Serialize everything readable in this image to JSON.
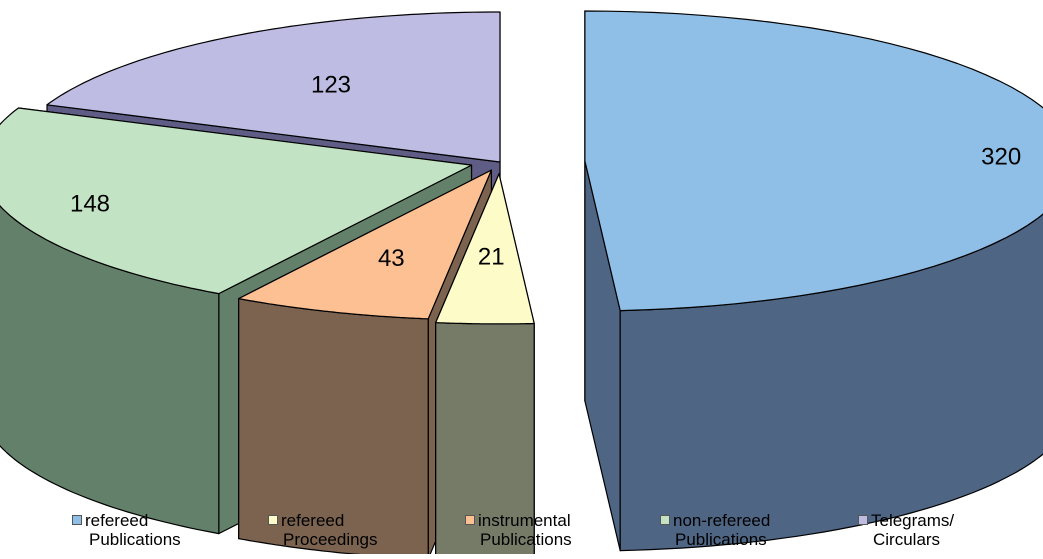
{
  "chart_data": {
    "type": "pie",
    "style": "3d-exploded",
    "title": "",
    "slices": [
      {
        "label": "refereed Publications",
        "value": 320,
        "color_top": "#8FBFE6",
        "color_side": "#4E6584"
      },
      {
        "label": "refereed Proceedings",
        "value": 21,
        "color_top": "#FDFBC8",
        "color_side": "#767B68"
      },
      {
        "label": "instrumental Publications",
        "value": 43,
        "color_top": "#FCC093",
        "color_side": "#7B6350"
      },
      {
        "label": "non-refereed Publications",
        "value": 148,
        "color_top": "#C3E3C5",
        "color_side": "#62806A"
      },
      {
        "label": "Telegrams/ Circulars",
        "value": 123,
        "color_top": "#BEBCE2",
        "color_side": "#5F5D85"
      }
    ],
    "data_labels": [
      "320",
      "21",
      "43",
      "148",
      "123"
    ],
    "legend": {
      "placement": "bottom",
      "entries": [
        {
          "line1": "refereed",
          "line2": "Publications",
          "color": "#8FBFE6"
        },
        {
          "line1": "refereed",
          "line2": "Proceedings",
          "color": "#FDFBC8"
        },
        {
          "line1": "instrumental",
          "line2": "Publications",
          "color": "#FCC093"
        },
        {
          "line1": "non-refereed",
          "line2": "Publications",
          "color": "#C3E3C5"
        },
        {
          "line1": "Telegrams/",
          "line2": "Circulars",
          "color": "#BEBCE2"
        }
      ]
    }
  }
}
